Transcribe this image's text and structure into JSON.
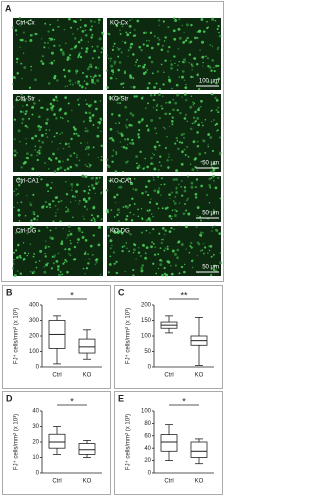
{
  "figure": {
    "panel_label": "A",
    "rows": [
      {
        "left": "Ctrl-Cx",
        "right": "KO-Cx",
        "scale": "100 μm"
      },
      {
        "left": "Ctrl-Str",
        "right": "KO-Str",
        "scale": "50 μm"
      },
      {
        "left": "Ctrl-CA1",
        "right": "KO-CA1",
        "scale": "50 μm"
      },
      {
        "left": "Ctrl-DG",
        "right": "KO-DG",
        "scale": "50 μm"
      }
    ]
  },
  "chart_data": [
    {
      "type": "box",
      "panel_label": "B",
      "ylabel": "FJ⁺ cells/mm² (x 10³)",
      "annotation": "*",
      "categories": [
        "Ctrl",
        "KO"
      ],
      "boxes": [
        {
          "min": 20,
          "q1": 120,
          "median": 210,
          "q3": 300,
          "max": 330
        },
        {
          "min": 50,
          "q1": 90,
          "median": 130,
          "q3": 180,
          "max": 240
        }
      ],
      "ylim": [
        0,
        400
      ],
      "yticks": [
        0,
        100,
        200,
        300,
        400
      ]
    },
    {
      "type": "box",
      "panel_label": "C",
      "ylabel": "FJ⁺ cells/mm² (x 10³)",
      "annotation": "**",
      "categories": [
        "Ctrl",
        "KO"
      ],
      "boxes": [
        {
          "min": 110,
          "q1": 125,
          "median": 135,
          "q3": 145,
          "max": 165
        },
        {
          "min": 5,
          "q1": 70,
          "median": 85,
          "q3": 100,
          "max": 160
        }
      ],
      "ylim": [
        0,
        200
      ],
      "yticks": [
        0,
        50,
        100,
        150,
        200
      ]
    },
    {
      "type": "box",
      "panel_label": "D",
      "ylabel": "FJ⁺ cells/mm² (x 10³)",
      "annotation": "*",
      "categories": [
        "Ctrl",
        "KO"
      ],
      "boxes": [
        {
          "min": 12,
          "q1": 16,
          "median": 20,
          "q3": 25,
          "max": 30
        },
        {
          "min": 10,
          "q1": 12,
          "median": 15,
          "q3": 19,
          "max": 21
        }
      ],
      "ylim": [
        0,
        40
      ],
      "yticks": [
        0,
        10,
        20,
        30,
        40
      ]
    },
    {
      "type": "box",
      "panel_label": "E",
      "ylabel": "FJ⁺ cells/mm² (x 10³)",
      "annotation": "*",
      "categories": [
        "Ctrl",
        "KO"
      ],
      "boxes": [
        {
          "min": 20,
          "q1": 35,
          "median": 50,
          "q3": 62,
          "max": 78
        },
        {
          "min": 15,
          "q1": 25,
          "median": 35,
          "q3": 50,
          "max": 55
        }
      ],
      "ylim": [
        0,
        100
      ],
      "yticks": [
        0,
        20,
        40,
        60,
        80,
        100
      ]
    }
  ]
}
